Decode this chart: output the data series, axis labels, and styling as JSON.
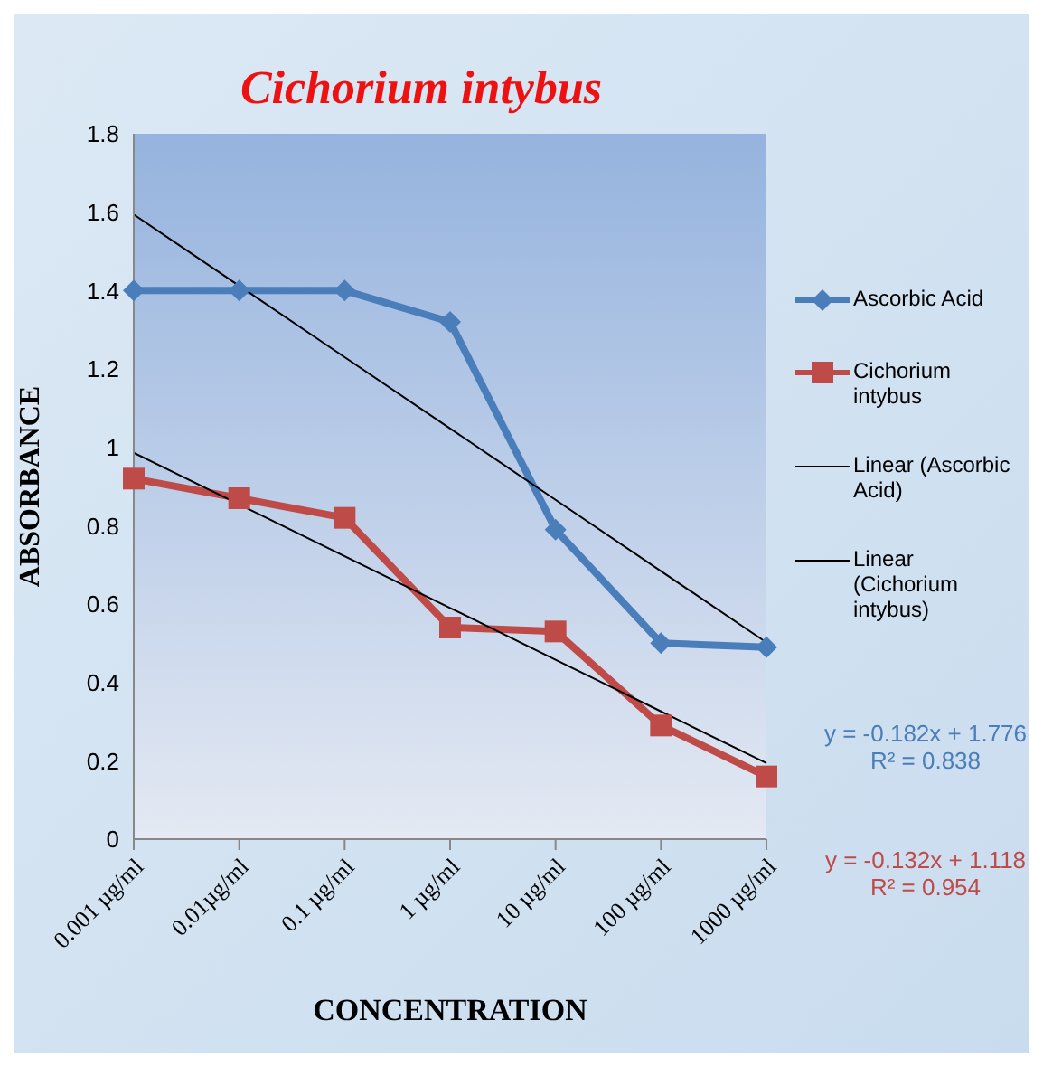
{
  "chart_data": {
    "type": "line",
    "title": "Cichorium intybus",
    "xlabel": "CONCENTRATION",
    "ylabel": "ABSORBANCE",
    "categories": [
      "0.001 µg/ml",
      "0.01µg/ml",
      "0.1 µg/ml",
      "1 µg/ml",
      "10 µg/ml",
      "100 µg/ml",
      "1000 µg/ml"
    ],
    "series": [
      {
        "name": "Ascorbic Acid",
        "color": "#4a7ebb",
        "marker": "diamond",
        "values": [
          1.4,
          1.4,
          1.4,
          1.32,
          0.79,
          0.5,
          0.49
        ]
      },
      {
        "name": "Cichorium intybus",
        "color": "#be4b48",
        "marker": "square",
        "values": [
          0.92,
          0.87,
          0.82,
          0.54,
          0.53,
          0.29,
          0.16
        ]
      },
      {
        "name": "Linear (Ascorbic Acid)",
        "color": "#000000",
        "marker": "none",
        "values": [
          1.594,
          1.412,
          1.23,
          1.048,
          0.866,
          0.684,
          0.502
        ]
      },
      {
        "name": "Linear (Cichorium intybus)",
        "color": "#000000",
        "marker": "none",
        "values": [
          0.986,
          0.854,
          0.722,
          0.59,
          0.458,
          0.326,
          0.194
        ]
      }
    ],
    "annotations": [
      "y = -0.182x + 1.776\nR² = 0.838",
      "y = -0.132x + 1.118\nR² = 0.954"
    ],
    "ylim": [
      0,
      1.8
    ],
    "yticks": [
      0,
      0.2,
      0.4,
      0.6,
      0.8,
      1,
      1.2,
      1.4,
      1.6,
      1.8
    ],
    "legend": "right"
  }
}
